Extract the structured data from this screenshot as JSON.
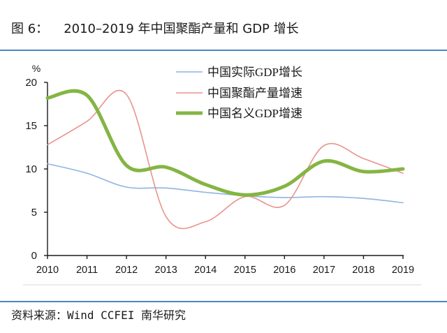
{
  "figure": {
    "number": "图 6："
  },
  "source": "资料来源：Wind CCFEI 南华研究",
  "colors": {
    "rule": "#4a86c5"
  },
  "chart_data": {
    "type": "line",
    "title": "2010–2019 年中国聚酯产量和 GDP 增长",
    "xlabel": "",
    "ylabel": "%",
    "categories": [
      "2010",
      "2011",
      "2012",
      "2013",
      "2014",
      "2015",
      "2016",
      "2017",
      "2018",
      "2019"
    ],
    "ylim": [
      0,
      20
    ],
    "yticks": [
      0,
      5,
      10,
      15,
      20
    ],
    "grid": false,
    "smooth": true,
    "legend": "top-right",
    "series": [
      {
        "name": "中国实际GDP增长",
        "color": "#8eb4e3",
        "values": [
          10.6,
          9.5,
          7.9,
          7.8,
          7.3,
          6.9,
          6.7,
          6.8,
          6.6,
          6.1
        ]
      },
      {
        "name": "中国聚酯产量增速",
        "color": "#e8938c",
        "values": [
          12.8,
          15.5,
          18.6,
          4.5,
          3.9,
          6.8,
          5.8,
          12.7,
          11.2,
          9.5
        ]
      },
      {
        "name": "中国名义GDP增速",
        "color": "#84b543",
        "values": [
          18.2,
          18.5,
          10.4,
          10.2,
          8.2,
          7.0,
          8.0,
          10.9,
          9.7,
          10.0
        ]
      }
    ]
  }
}
